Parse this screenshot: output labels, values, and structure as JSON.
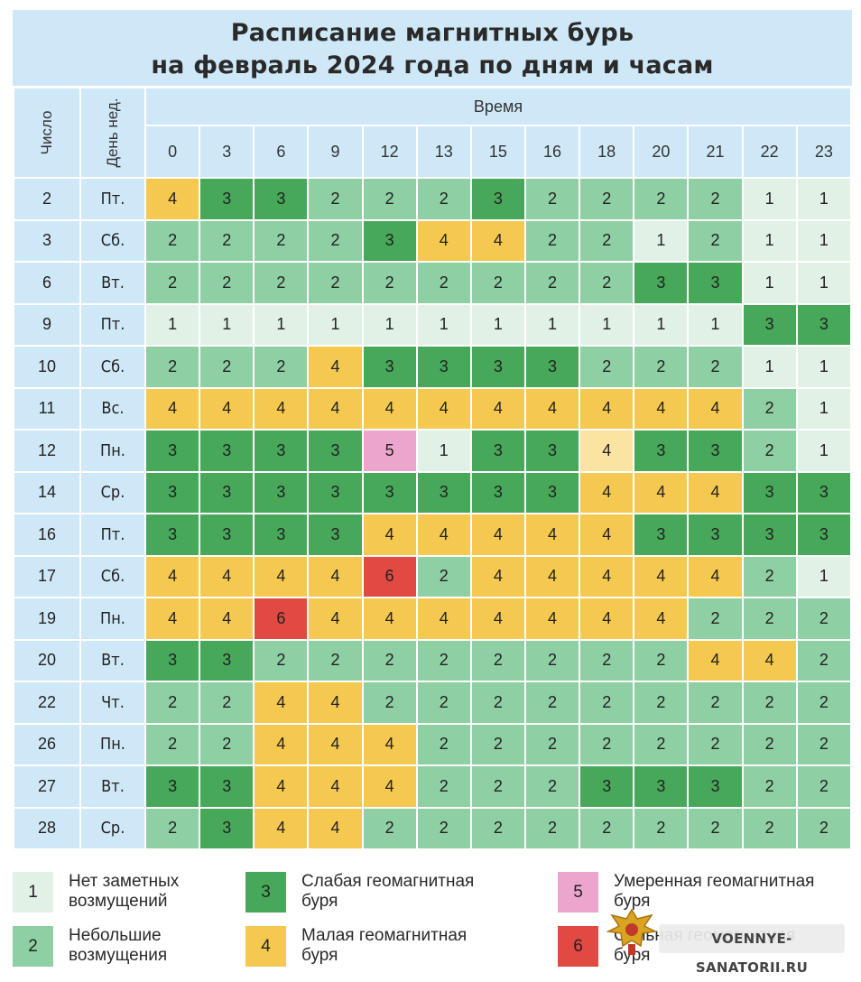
{
  "title": {
    "line1": "Расписание магнитных бурь",
    "line2": "на февраль 2024 года по дням и часам"
  },
  "headers": {
    "day": "Число",
    "weekday": "День нед.",
    "time": "Время",
    "hours": [
      "0",
      "3",
      "6",
      "9",
      "12",
      "13",
      "15",
      "16",
      "18",
      "20",
      "21",
      "22",
      "23"
    ]
  },
  "rows": [
    {
      "day": "2",
      "dow": "Пт.",
      "values": [
        4,
        3,
        3,
        2,
        2,
        2,
        3,
        2,
        2,
        2,
        2,
        1,
        1
      ]
    },
    {
      "day": "3",
      "dow": "Сб.",
      "values": [
        2,
        2,
        2,
        2,
        3,
        4,
        4,
        2,
        2,
        1,
        2,
        1,
        1
      ]
    },
    {
      "day": "6",
      "dow": "Вт.",
      "values": [
        2,
        2,
        2,
        2,
        2,
        2,
        2,
        2,
        2,
        3,
        3,
        1,
        1
      ]
    },
    {
      "day": "9",
      "dow": "Пт.",
      "values": [
        1,
        1,
        1,
        1,
        1,
        1,
        1,
        1,
        1,
        1,
        1,
        3,
        3
      ]
    },
    {
      "day": "10",
      "dow": "Сб.",
      "values": [
        2,
        2,
        2,
        4,
        3,
        3,
        3,
        3,
        2,
        2,
        2,
        1,
        1
      ]
    },
    {
      "day": "11",
      "dow": "Вс.",
      "values": [
        4,
        4,
        4,
        4,
        4,
        4,
        4,
        4,
        4,
        4,
        4,
        2,
        1
      ]
    },
    {
      "day": "12",
      "dow": "Пн.",
      "values": [
        3,
        3,
        3,
        3,
        5,
        1,
        3,
        3,
        4,
        3,
        3,
        2,
        1
      ]
    },
    {
      "day": "14",
      "dow": "Ср.",
      "values": [
        3,
        3,
        3,
        3,
        3,
        3,
        3,
        3,
        4,
        4,
        4,
        3,
        3
      ]
    },
    {
      "day": "16",
      "dow": "Пт.",
      "values": [
        3,
        3,
        3,
        3,
        4,
        4,
        4,
        4,
        4,
        3,
        3,
        3,
        3
      ]
    },
    {
      "day": "17",
      "dow": "Сб.",
      "values": [
        4,
        4,
        4,
        4,
        6,
        2,
        4,
        4,
        4,
        4,
        4,
        2,
        1
      ]
    },
    {
      "day": "19",
      "dow": "Пн.",
      "values": [
        4,
        4,
        6,
        4,
        4,
        4,
        4,
        4,
        4,
        4,
        2,
        2,
        2
      ]
    },
    {
      "day": "20",
      "dow": "Вт.",
      "values": [
        3,
        3,
        2,
        2,
        2,
        2,
        2,
        2,
        2,
        2,
        4,
        4,
        2
      ]
    },
    {
      "day": "22",
      "dow": "Чт.",
      "values": [
        2,
        2,
        4,
        4,
        2,
        2,
        2,
        2,
        2,
        2,
        2,
        2,
        2
      ]
    },
    {
      "day": "26",
      "dow": "Пн.",
      "values": [
        2,
        2,
        4,
        4,
        4,
        2,
        2,
        2,
        2,
        2,
        2,
        2,
        2
      ]
    },
    {
      "day": "27",
      "dow": "Вт.",
      "values": [
        3,
        3,
        4,
        4,
        4,
        2,
        2,
        2,
        3,
        3,
        3,
        2,
        2
      ]
    },
    {
      "day": "28",
      "dow": "Ср.",
      "values": [
        2,
        3,
        4,
        4,
        2,
        2,
        2,
        2,
        2,
        2,
        2,
        2,
        2
      ]
    }
  ],
  "legend": [
    {
      "level": "1",
      "text": [
        "Нет заметных",
        "возмущений"
      ]
    },
    {
      "level": "2",
      "text": [
        "Небольшие",
        "возмущения"
      ]
    },
    {
      "level": "3",
      "text": [
        "Слабая геомагнитная",
        "буря"
      ]
    },
    {
      "level": "4",
      "text": [
        "Малая геомагнитная",
        "буря"
      ]
    },
    {
      "level": "5",
      "text": [
        "Умеренная геомагнитная",
        "буря"
      ]
    },
    {
      "level": "6",
      "text": [
        "Сильная геомагнитная",
        "буря"
      ]
    }
  ],
  "colors": {
    "level1": "#e2f1e6",
    "level2": "#8ecfa3",
    "level3": "#47a85a",
    "level4": "#f5c84f",
    "level5": "#eca5cd",
    "level6": "#e04a42",
    "header": "#cfe8f7"
  },
  "watermark": "VOENNYE-SANATORII.RU"
}
